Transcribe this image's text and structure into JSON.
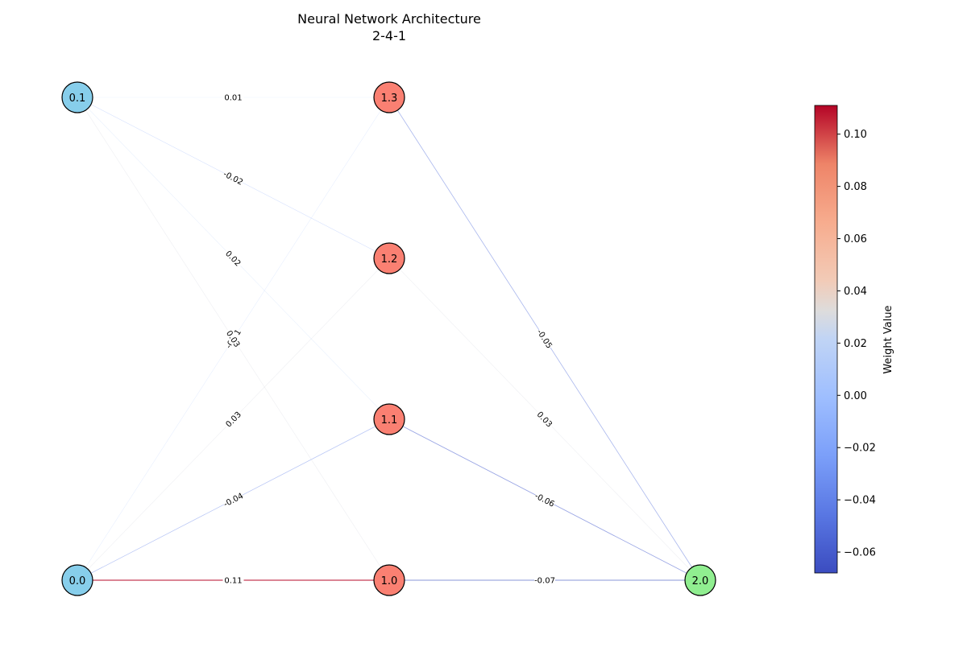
{
  "title": {
    "line1": "Neural Network Architecture",
    "line2": "2-4-1"
  },
  "nodes": [
    {
      "id": "0.0",
      "layer": 0,
      "color": "#87ceeb"
    },
    {
      "id": "0.1",
      "layer": 0,
      "color": "#87ceeb"
    },
    {
      "id": "1.0",
      "layer": 1,
      "color": "#fa8072"
    },
    {
      "id": "1.1",
      "layer": 1,
      "color": "#fa8072"
    },
    {
      "id": "1.2",
      "layer": 1,
      "color": "#fa8072"
    },
    {
      "id": "1.3",
      "layer": 1,
      "color": "#fa8072"
    },
    {
      "id": "2.0",
      "layer": 2,
      "color": "#90ee90"
    }
  ],
  "edges": [
    {
      "from": "0.0",
      "to": "1.0",
      "weight": 0.11,
      "label": "0.11"
    },
    {
      "from": "0.0",
      "to": "1.1",
      "weight": -0.04,
      "label": "-0.04"
    },
    {
      "from": "0.0",
      "to": "1.2",
      "weight": 0.03,
      "label": "0.03"
    },
    {
      "from": "0.0",
      "to": "1.3",
      "weight": -0.01,
      "label": "-0.01"
    },
    {
      "from": "0.1",
      "to": "1.0",
      "weight": 0.03,
      "label": "0.03"
    },
    {
      "from": "0.1",
      "to": "1.1",
      "weight": 0.02,
      "label": "0.02"
    },
    {
      "from": "0.1",
      "to": "1.2",
      "weight": -0.02,
      "label": "-0.02"
    },
    {
      "from": "0.1",
      "to": "1.3",
      "weight": 0.01,
      "label": "0.01"
    },
    {
      "from": "1.0",
      "to": "2.0",
      "weight": -0.07,
      "label": "-0.07"
    },
    {
      "from": "1.1",
      "to": "2.0",
      "weight": -0.06,
      "label": "-0.06"
    },
    {
      "from": "1.2",
      "to": "2.0",
      "weight": 0.03,
      "label": "0.03"
    },
    {
      "from": "1.3",
      "to": "2.0",
      "weight": -0.05,
      "label": "-0.05"
    }
  ],
  "colorbar": {
    "label": "Weight Value",
    "min": -0.068,
    "max": 0.111,
    "ticks": [
      {
        "value": 0.1,
        "label": "0.10"
      },
      {
        "value": 0.08,
        "label": "0.08"
      },
      {
        "value": 0.06,
        "label": "0.06"
      },
      {
        "value": 0.04,
        "label": "0.04"
      },
      {
        "value": 0.02,
        "label": "0.02"
      },
      {
        "value": 0.0,
        "label": "0.00"
      },
      {
        "value": -0.02,
        "label": "−0.02"
      },
      {
        "value": -0.04,
        "label": "−0.04"
      },
      {
        "value": -0.06,
        "label": "−0.06"
      }
    ],
    "colormap": "coolwarm"
  }
}
